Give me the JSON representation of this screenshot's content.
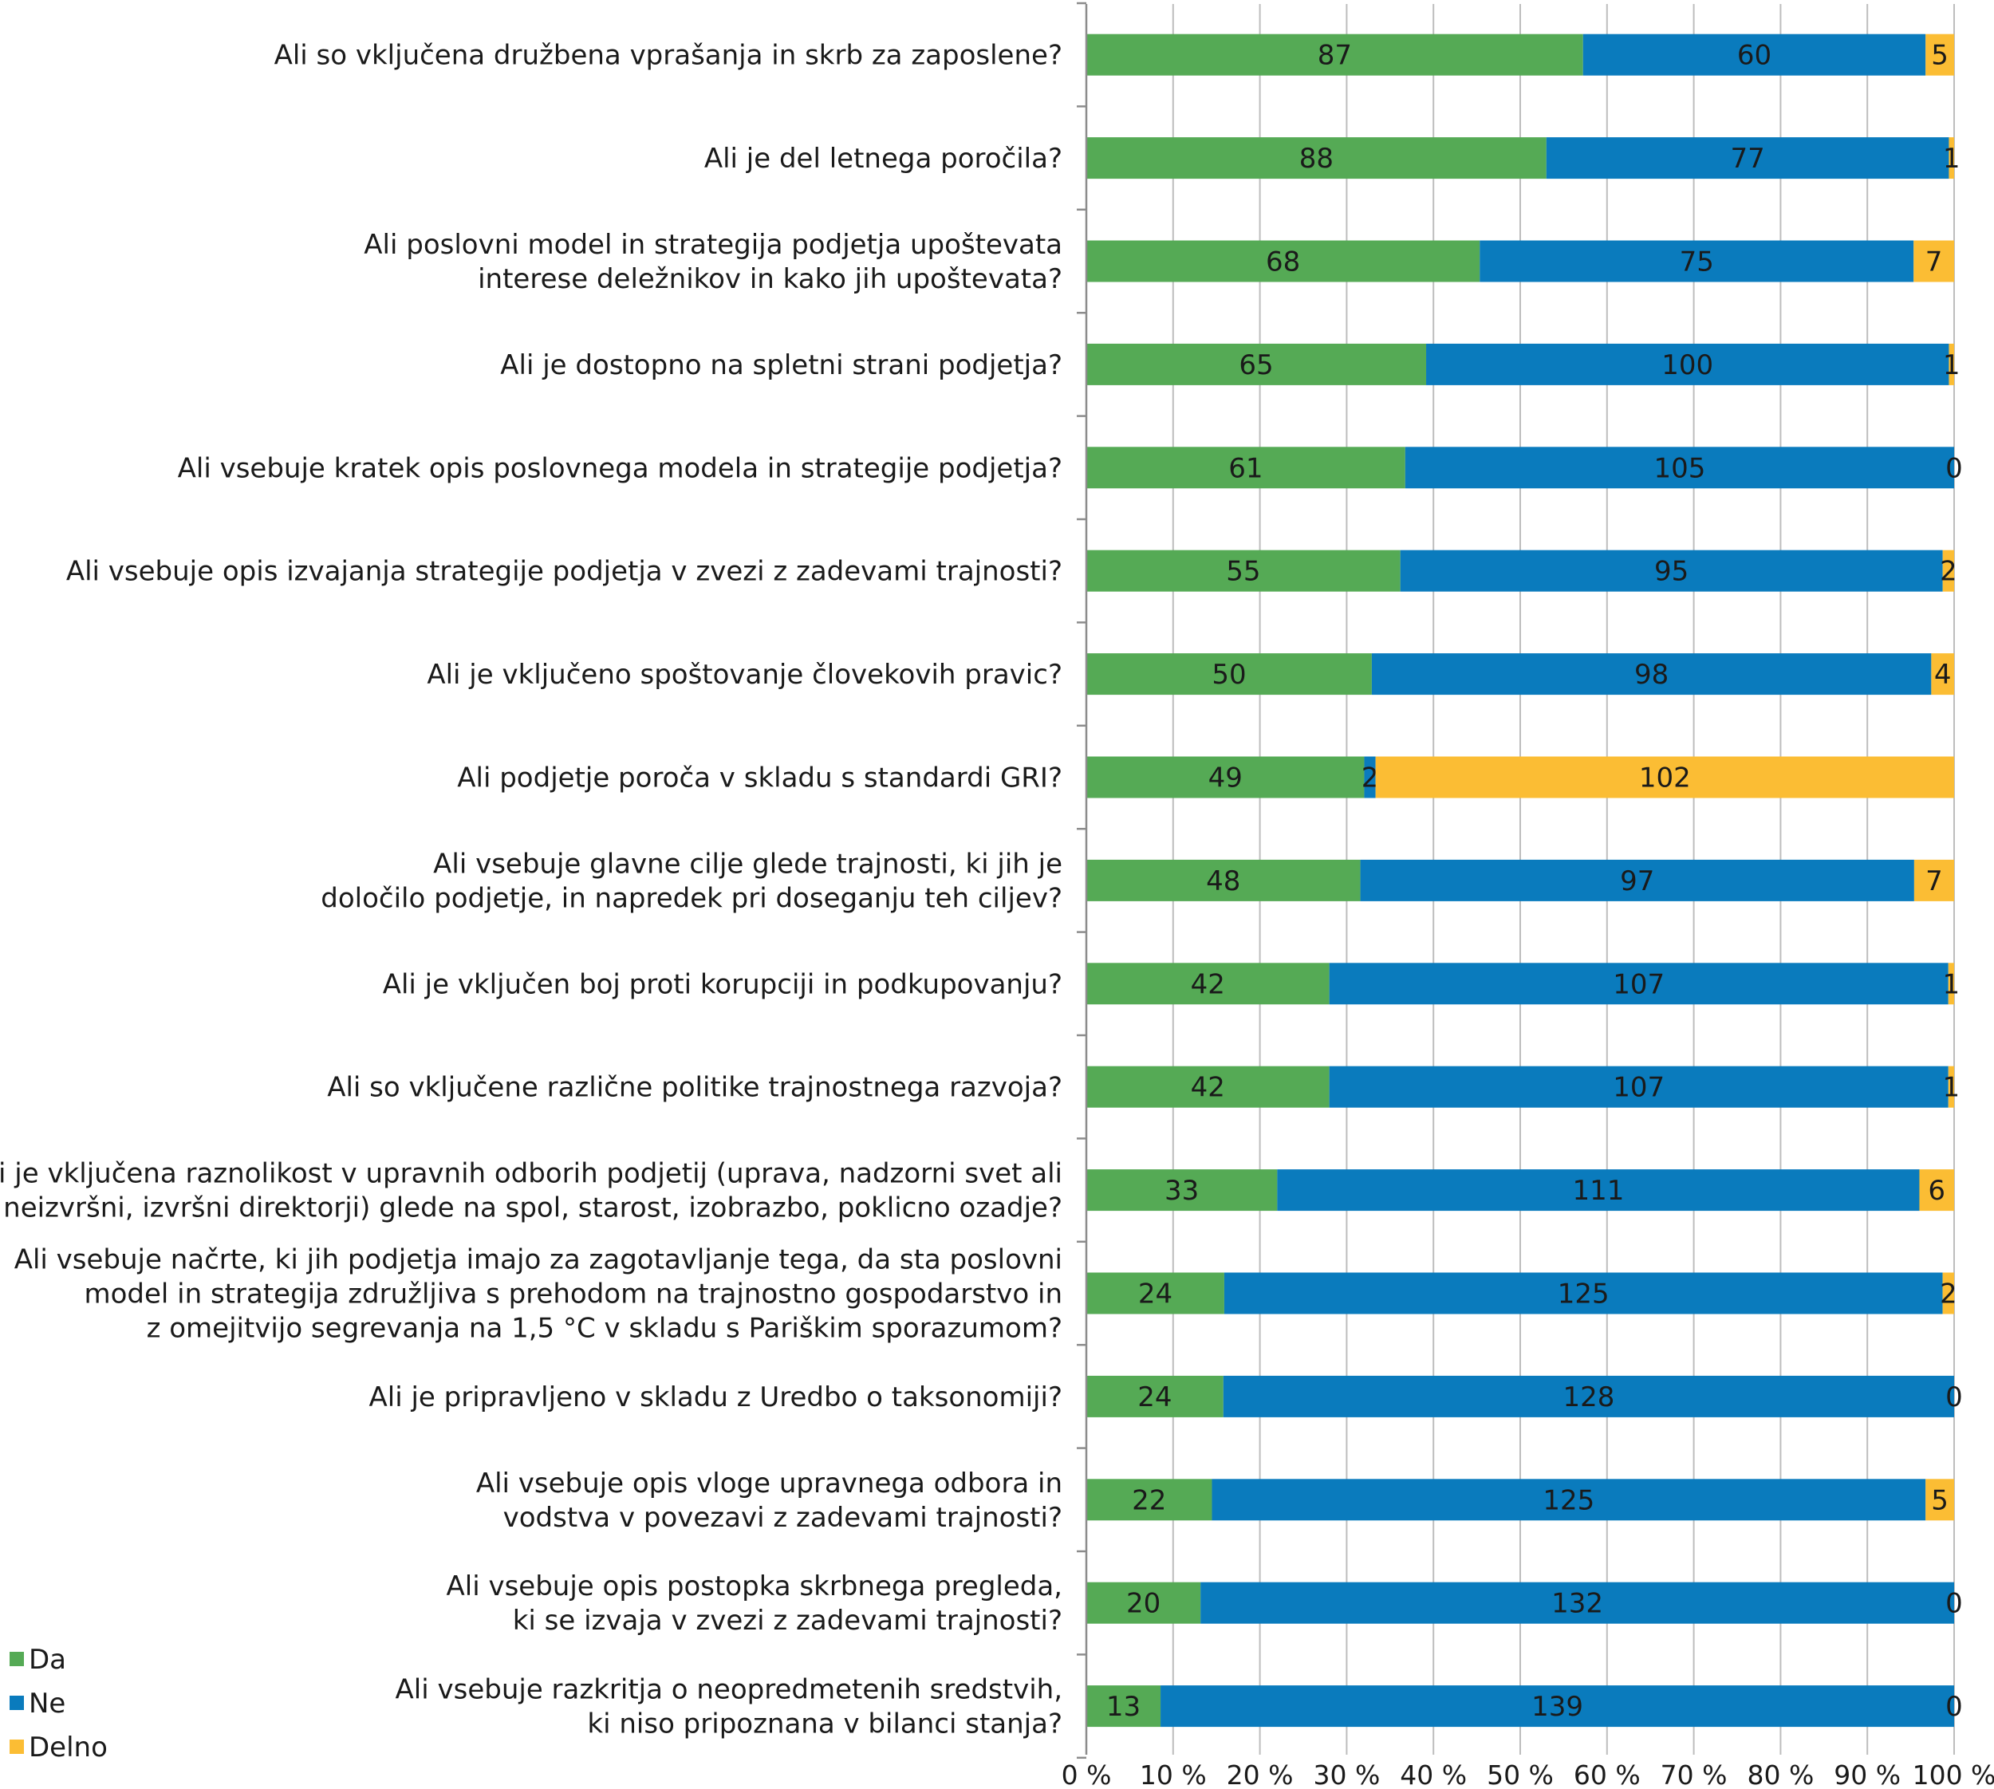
{
  "chart_data": {
    "type": "bar",
    "orientation": "horizontal",
    "stacked": "percent",
    "categories": [
      [
        "Ali so vključena družbena vprašanja in skrb za zaposlene?"
      ],
      [
        "Ali je del letnega poročila?"
      ],
      [
        "Ali poslovni model in strategija podjetja upoštevata",
        "interese deležnikov in kako jih upoštevata?"
      ],
      [
        "Ali je dostopno na spletni strani podjetja?"
      ],
      [
        "Ali vsebuje kratek opis poslovnega modela in strategije podjetja?"
      ],
      [
        "Ali vsebuje opis izvajanja strategije podjetja v zvezi z zadevami trajnosti?"
      ],
      [
        "Ali je vključeno spoštovanje človekovih pravic?"
      ],
      [
        "Ali podjetje poroča v skladu s standardi GRI?"
      ],
      [
        "Ali vsebuje glavne cilje glede trajnosti, ki jih je",
        "določilo podjetje, in napredek pri doseganju teh ciljev?"
      ],
      [
        "Ali je vključen boj proti korupciji in podkupovanju?"
      ],
      [
        "Ali so vključene različne politike trajnostnega razvoja?"
      ],
      [
        "Ali je vključena raznolikost v upravnih odborih podjetij (uprava, nadzorni svet ali",
        "neizvršni, izvršni direktorji) glede na spol, starost, izobrazbo, poklicno ozadje?"
      ],
      [
        "Ali  vsebuje načrte, ki jih podjetja imajo za zagotavljanje tega, da sta poslovni",
        "model in strategija združljiva s prehodom na trajnostno gospodarstvo in",
        "z omejitvijo segrevanja na 1,5 °C v skladu s Pariškim sporazumom?"
      ],
      [
        "Ali je pripravljeno v skladu z Uredbo o taksonomiji?"
      ],
      [
        "Ali vsebuje opis vloge upravnega odbora in",
        "vodstva v povezavi z zadevami trajnosti?"
      ],
      [
        "Ali vsebuje opis postopka skrbnega pregleda,",
        "ki se izvaja v zvezi z zadevami trajnosti?"
      ],
      [
        "Ali vsebuje razkritja o neopredmetenih sredstvih,",
        "ki niso pripoznana v bilanci stanja?"
      ]
    ],
    "series": [
      {
        "name": "Da",
        "color": "#55aa55",
        "values": [
          87,
          88,
          68,
          65,
          61,
          55,
          50,
          49,
          48,
          42,
          42,
          33,
          24,
          24,
          22,
          20,
          13
        ]
      },
      {
        "name": "Ne",
        "color": "#0a7bbd",
        "values": [
          60,
          77,
          75,
          100,
          105,
          95,
          98,
          2,
          97,
          107,
          107,
          111,
          125,
          128,
          125,
          132,
          139
        ]
      },
      {
        "name": "Delno",
        "color": "#fbbd34",
        "values": [
          5,
          1,
          7,
          1,
          0,
          2,
          4,
          102,
          7,
          1,
          1,
          6,
          2,
          0,
          5,
          0,
          0
        ]
      }
    ],
    "x_ticks": [
      "0 %",
      "10 %",
      "20 %",
      "30 %",
      "40 %",
      "50 %",
      "60 %",
      "70 %",
      "80 %",
      "90 %",
      "100 %"
    ],
    "xlim": [
      0,
      100
    ],
    "grid": true,
    "legend_position": "bottom-left"
  }
}
